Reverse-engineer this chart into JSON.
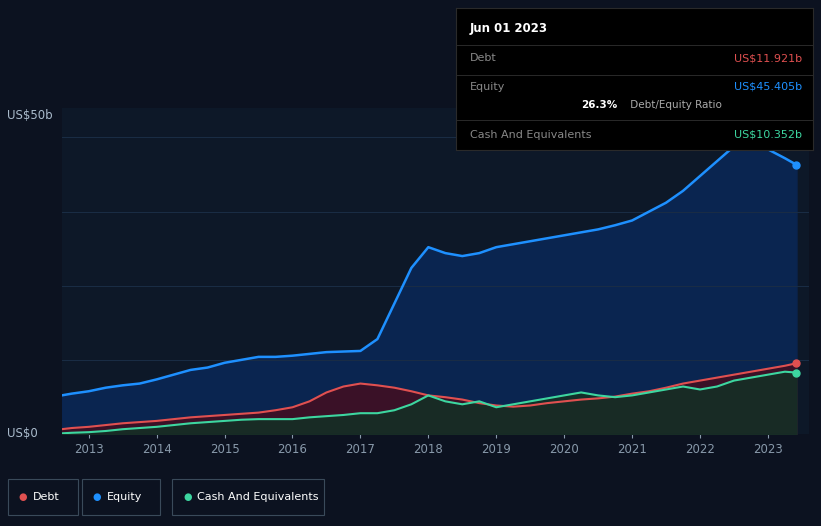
{
  "background_color": "#0c1220",
  "plot_bg_color": "#0d1828",
  "grid_color": "#1a2d45",
  "equity_color": "#1e90ff",
  "equity_fill": "#0a2550",
  "debt_color": "#e05050",
  "debt_fill": "#3d1025",
  "cash_color": "#3dd6a0",
  "cash_fill": "#152e25",
  "tooltip_bg": "#000000",
  "tooltip_border": "#2a2a2a",
  "tooltip_title": "Jun 01 2023",
  "tooltip_debt_label": "Debt",
  "tooltip_debt_value": "US$11.921b",
  "tooltip_equity_label": "Equity",
  "tooltip_equity_value": "US$45.405b",
  "tooltip_ratio_bold": "26.3%",
  "tooltip_ratio_rest": " Debt/Equity Ratio",
  "tooltip_cash_label": "Cash And Equivalents",
  "tooltip_cash_value": "US$10.352b",
  "legend_debt": "Debt",
  "legend_equity": "Equity",
  "legend_cash": "Cash And Equivalents",
  "ylabel_text": "US$50b",
  "ylabel0_text": "US$0",
  "ylim": [
    0,
    55
  ],
  "xlim": [
    2012.6,
    2023.6
  ],
  "x_ticks": [
    2013,
    2014,
    2015,
    2016,
    2017,
    2018,
    2019,
    2020,
    2021,
    2022,
    2023
  ],
  "years": [
    2012.6,
    2012.75,
    2013.0,
    2013.25,
    2013.5,
    2013.75,
    2014.0,
    2014.25,
    2014.5,
    2014.75,
    2015.0,
    2015.25,
    2015.5,
    2015.75,
    2016.0,
    2016.25,
    2016.5,
    2016.75,
    2017.0,
    2017.25,
    2017.5,
    2017.75,
    2018.0,
    2018.25,
    2018.5,
    2018.75,
    2019.0,
    2019.25,
    2019.5,
    2019.75,
    2020.0,
    2020.25,
    2020.5,
    2020.75,
    2021.0,
    2021.25,
    2021.5,
    2021.75,
    2022.0,
    2022.25,
    2022.5,
    2022.75,
    2023.0,
    2023.25,
    2023.42
  ],
  "equity_values": [
    6.5,
    6.8,
    7.2,
    7.8,
    8.2,
    8.5,
    9.2,
    10.0,
    10.8,
    11.2,
    12.0,
    12.5,
    13.0,
    13.0,
    13.2,
    13.5,
    13.8,
    13.9,
    14.0,
    16.0,
    22.0,
    28.0,
    31.5,
    30.5,
    30.0,
    30.5,
    31.5,
    32.0,
    32.5,
    33.0,
    33.5,
    34.0,
    34.5,
    35.2,
    36.0,
    37.5,
    39.0,
    41.0,
    43.5,
    46.0,
    48.5,
    49.5,
    48.0,
    46.5,
    45.4
  ],
  "debt_values": [
    0.8,
    1.0,
    1.2,
    1.5,
    1.8,
    2.0,
    2.2,
    2.5,
    2.8,
    3.0,
    3.2,
    3.4,
    3.6,
    4.0,
    4.5,
    5.5,
    7.0,
    8.0,
    8.5,
    8.2,
    7.8,
    7.2,
    6.5,
    6.2,
    5.8,
    5.2,
    4.8,
    4.6,
    4.8,
    5.2,
    5.5,
    5.8,
    6.0,
    6.3,
    6.8,
    7.2,
    7.8,
    8.5,
    9.0,
    9.5,
    10.0,
    10.5,
    11.0,
    11.5,
    11.921
  ],
  "cash_values": [
    0.1,
    0.2,
    0.3,
    0.5,
    0.8,
    1.0,
    1.2,
    1.5,
    1.8,
    2.0,
    2.2,
    2.4,
    2.5,
    2.5,
    2.5,
    2.8,
    3.0,
    3.2,
    3.5,
    3.5,
    4.0,
    5.0,
    6.5,
    5.5,
    5.0,
    5.5,
    4.5,
    5.0,
    5.5,
    6.0,
    6.5,
    7.0,
    6.5,
    6.2,
    6.5,
    7.0,
    7.5,
    8.0,
    7.5,
    8.0,
    9.0,
    9.5,
    10.0,
    10.5,
    10.352
  ]
}
